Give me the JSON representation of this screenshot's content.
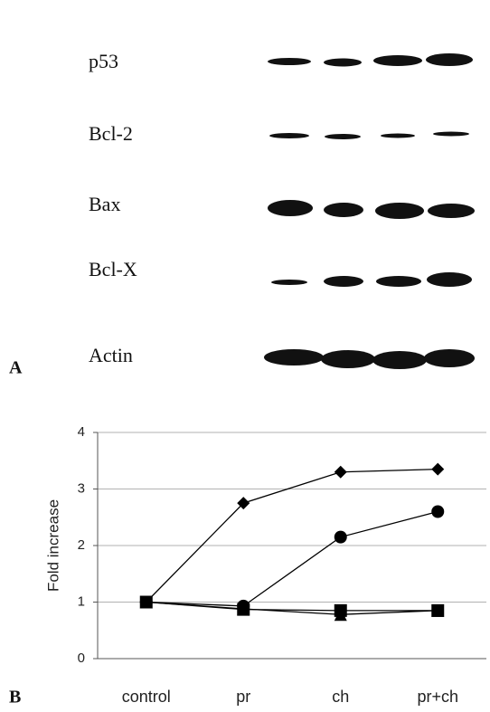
{
  "panel_a": {
    "label": "A",
    "proteins": [
      "p53",
      "Bcl-2",
      "Bax",
      "Bcl-X",
      "Actin"
    ]
  },
  "panel_b": {
    "label": "B"
  },
  "chart_data": {
    "type": "line",
    "y_label": "Fold increase",
    "categories": [
      "control",
      "pr",
      "ch",
      "pr+ch"
    ],
    "ylim": [
      0,
      4
    ],
    "yticks": [
      0,
      1,
      2,
      3,
      4
    ],
    "grid": true,
    "series": [
      {
        "color": "#000000",
        "marker": "diamond",
        "values": [
          1,
          2.75,
          3.3,
          3.35
        ]
      },
      {
        "color": "#000000",
        "marker": "circle",
        "values": [
          1,
          0.93,
          2.15,
          2.6
        ]
      },
      {
        "color": "#000000",
        "marker": "triangle",
        "values": [
          1,
          0.88,
          0.78,
          0.85
        ]
      },
      {
        "color": "#000000",
        "marker": "square",
        "values": [
          1,
          0.87,
          0.85,
          0.85
        ]
      }
    ]
  }
}
